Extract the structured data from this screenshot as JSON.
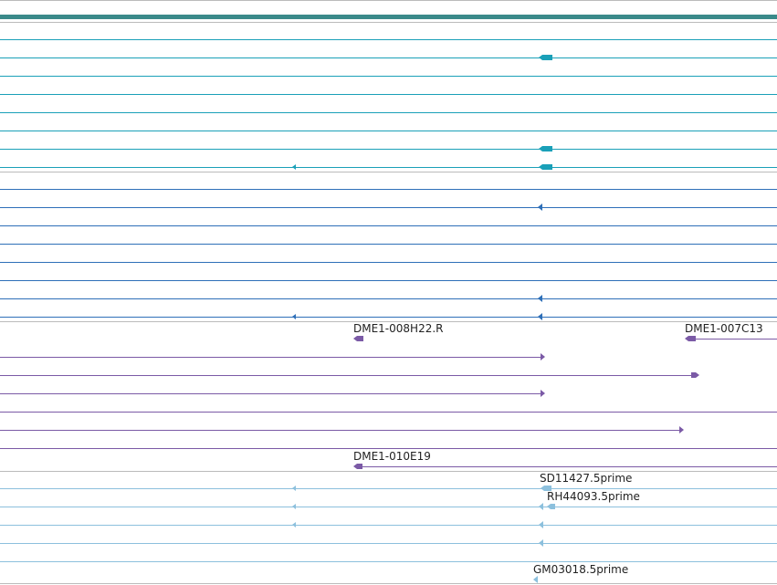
{
  "colors": {
    "track_divider": "#bbbbbb",
    "dark_teal": "#3b8a8a",
    "teal": "#1aa0b8",
    "blue": "#2e6fb8",
    "purple": "#7b5aa6",
    "light_blue": "#8cc0dd"
  },
  "labels": {
    "dme1_008h22": "DME1-008H22.R",
    "dme1_007c13": "DME1-007C13",
    "dme1_010e19": "DME1-010E19",
    "sd11427": "SD11427.5prime",
    "rh44093": "RH44093.5prime",
    "gm03018": "GM03018.5prime"
  }
}
